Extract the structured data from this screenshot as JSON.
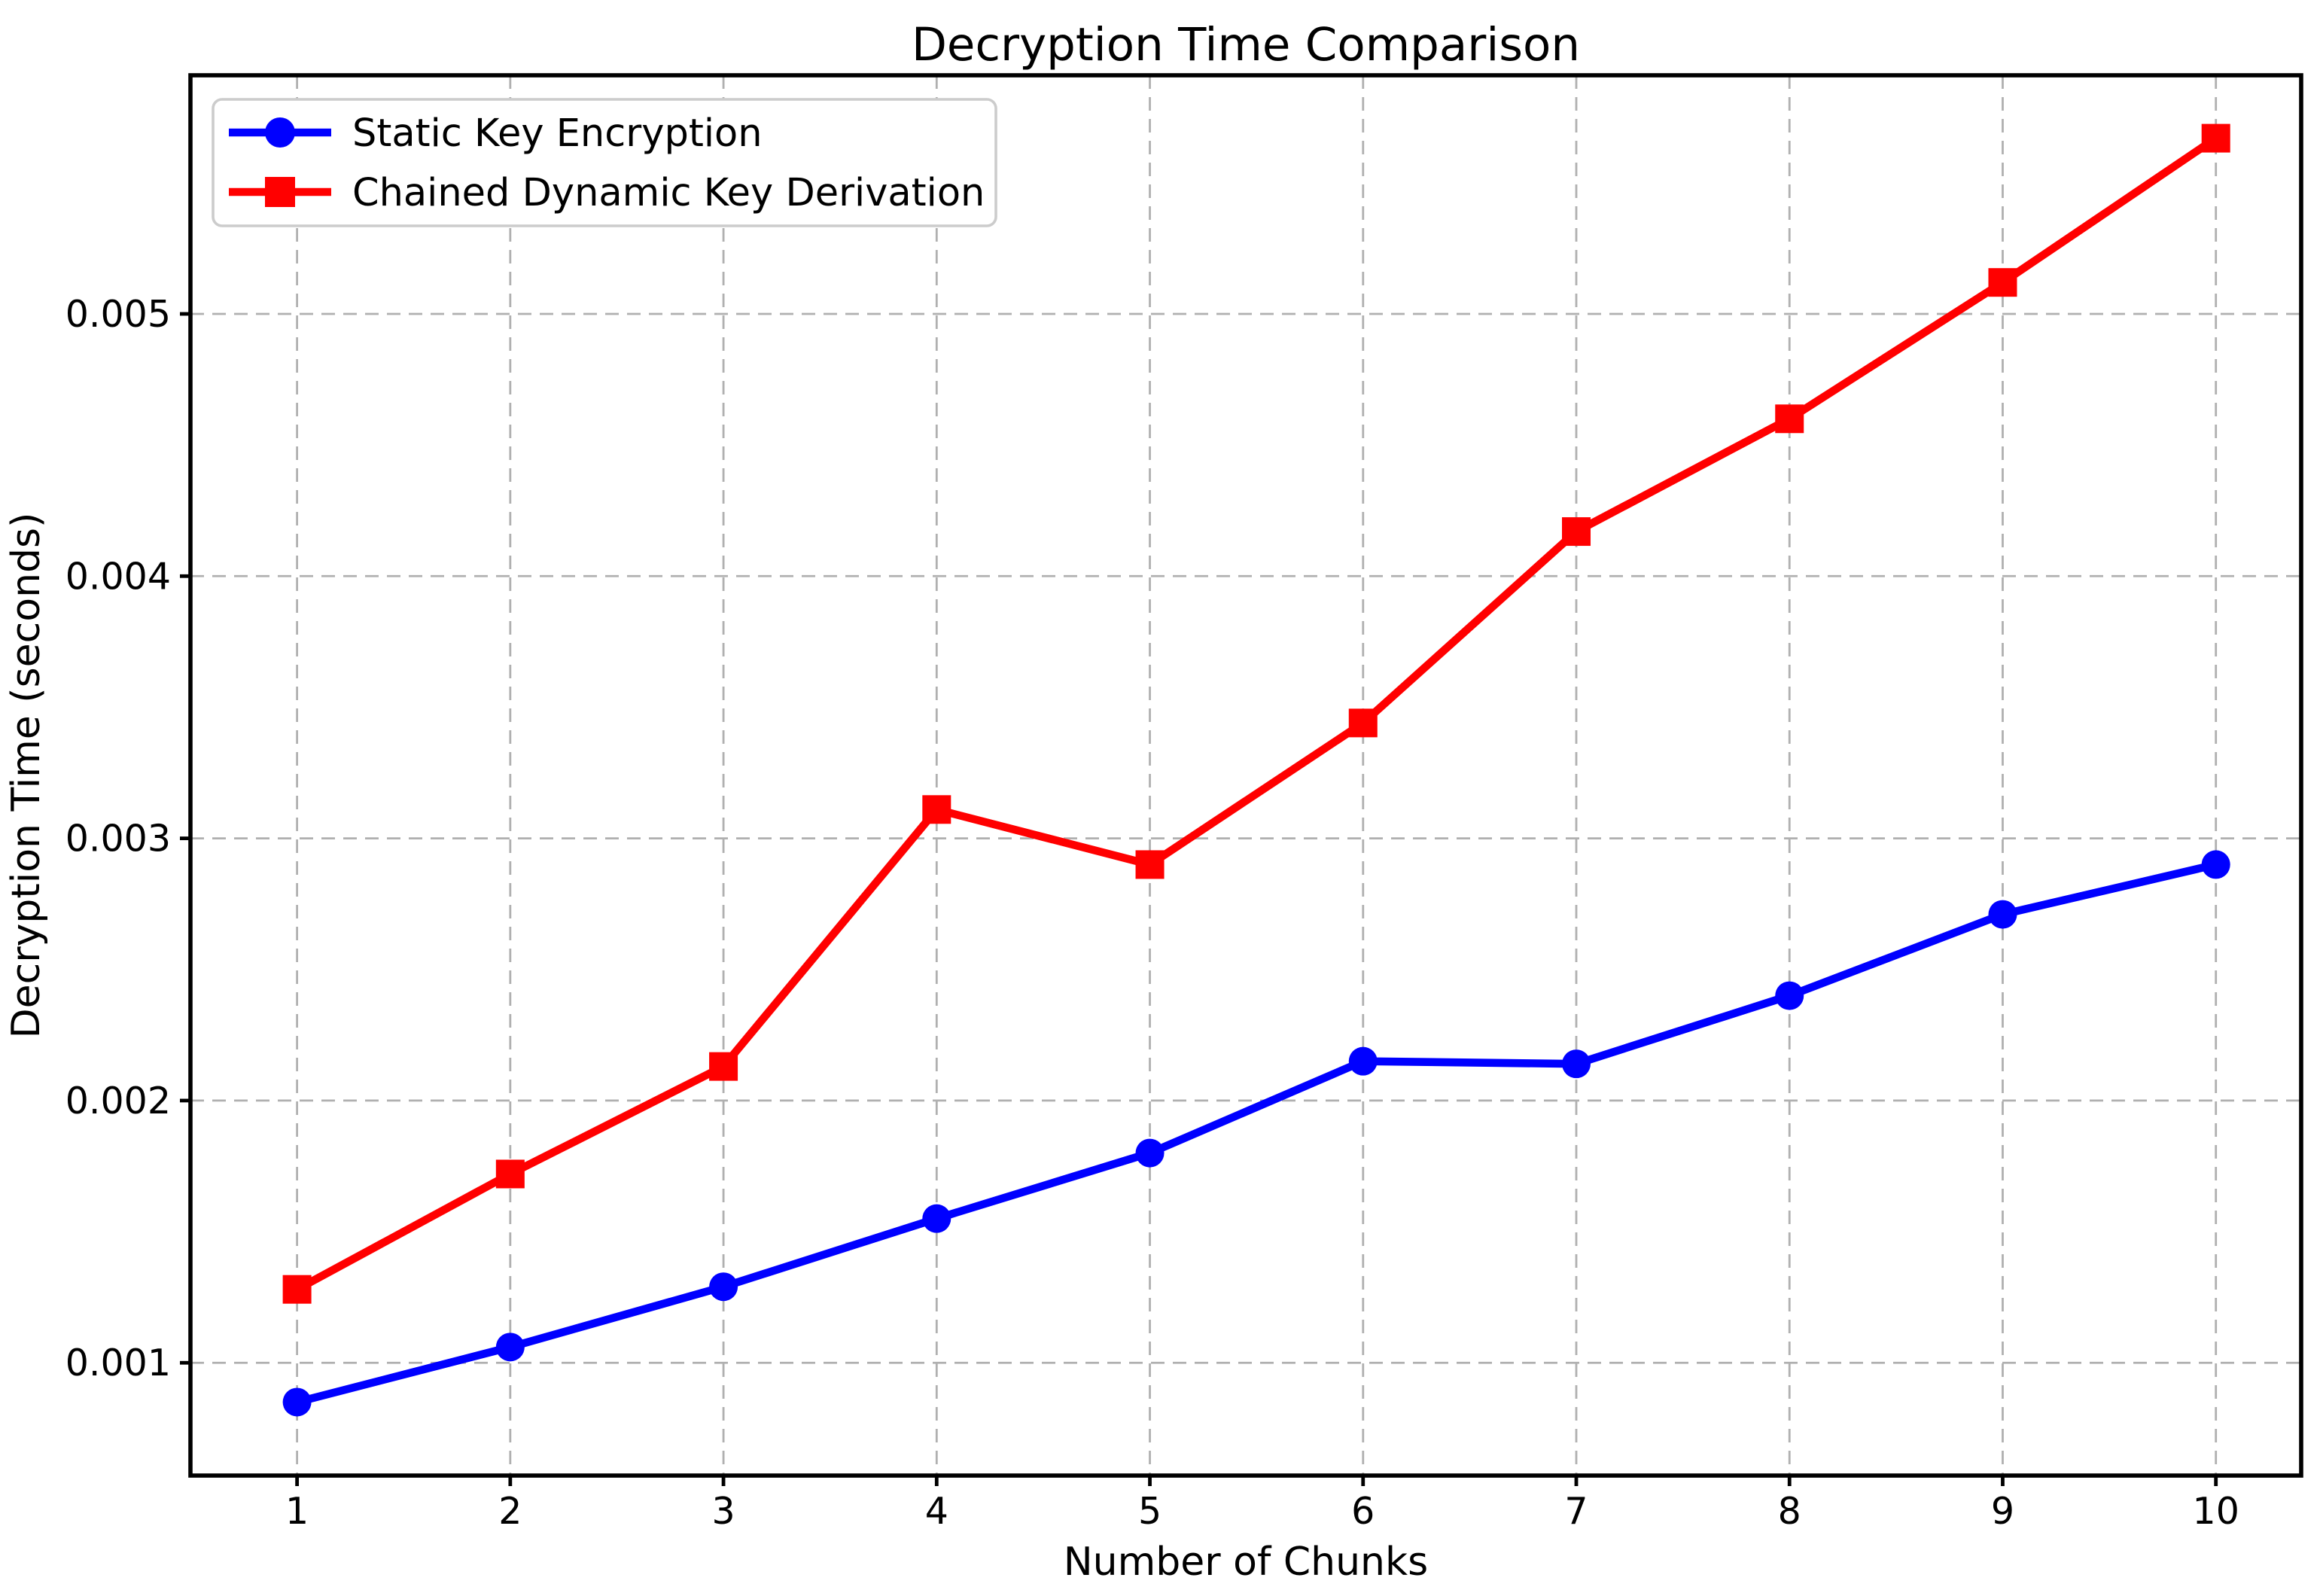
{
  "figure": {
    "background": "#ffffff"
  },
  "chart_data": {
    "type": "line",
    "title": "Decryption Time Comparison",
    "xlabel": "Number of Chunks",
    "ylabel": "Decryption Time (seconds)",
    "x": [
      1,
      2,
      3,
      4,
      5,
      6,
      7,
      8,
      9,
      10
    ],
    "x_tick_labels": [
      "1",
      "2",
      "3",
      "4",
      "5",
      "6",
      "7",
      "8",
      "9",
      "10"
    ],
    "y_ticks": [
      0.001,
      0.002,
      0.003,
      0.004,
      0.005
    ],
    "y_tick_labels": [
      "0.001",
      "0.002",
      "0.003",
      "0.004",
      "0.005"
    ],
    "xlim": [
      0.5,
      10.4
    ],
    "ylim": [
      0.00057,
      0.00591
    ],
    "grid": true,
    "grid_style": "dashed",
    "grid_color": "#b0b0b0",
    "axis_color": "#000000",
    "legend_position": "upper left",
    "series": [
      {
        "name": "Static Key Encryption",
        "color": "#0000ff",
        "marker": "circle",
        "values": [
          0.00085,
          0.00106,
          0.00129,
          0.00155,
          0.0018,
          0.00215,
          0.00214,
          0.0024,
          0.00271,
          0.0029
        ]
      },
      {
        "name": "Chained Dynamic Key Derivation",
        "color": "#ff0000",
        "marker": "square",
        "values": [
          0.00128,
          0.00172,
          0.00213,
          0.00311,
          0.0029,
          0.00344,
          0.00417,
          0.0046,
          0.00512,
          0.00567
        ]
      }
    ]
  }
}
